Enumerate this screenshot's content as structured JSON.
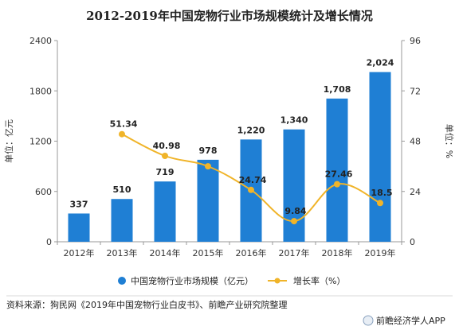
{
  "chart_data": {
    "type": "bar",
    "title": "2012-2019年中国宠物行业市场规模统计及增长情况",
    "categories": [
      "2012年",
      "2013年",
      "2014年",
      "2015年",
      "2016年",
      "2017年",
      "2018年",
      "2019年"
    ],
    "series": [
      {
        "name": "中国宠物行业市场规模（亿元）",
        "type": "bar",
        "axis": "left",
        "values": [
          337,
          510,
          719,
          978,
          1220,
          1340,
          1708,
          2024
        ],
        "labels": [
          "337",
          "510",
          "719",
          "978",
          "1,220",
          "1,340",
          "1,708",
          "2,024"
        ],
        "color": "#1f7fd4"
      },
      {
        "name": "增长率（%）",
        "type": "line",
        "axis": "right",
        "values": [
          null,
          51.34,
          40.98,
          36.0,
          24.74,
          9.84,
          27.46,
          18.5
        ],
        "labels": [
          "",
          "51.34",
          "40.98",
          "",
          "24.74",
          "9.84",
          "27.46",
          "18.5"
        ],
        "color": "#f0b429"
      }
    ],
    "ylabel": "单位：亿元",
    "y2label": "单位：%",
    "ylim": [
      0,
      2400
    ],
    "y2lim": [
      0,
      96
    ],
    "yticks": [
      "0",
      "600",
      "1200",
      "1800",
      "2400"
    ],
    "y2ticks": [
      "0",
      "24",
      "48",
      "72",
      "96"
    ],
    "grid": false,
    "legend_position": "bottom"
  },
  "footer": {
    "source": "资料来源：狗民网《2019年中国宠物行业白皮书》、前瞻产业研究院整理",
    "brand": "前瞻经济学人APP"
  },
  "colors": {
    "bar": "#1f7fd4",
    "line": "#f0b429",
    "axis": "#999999"
  }
}
